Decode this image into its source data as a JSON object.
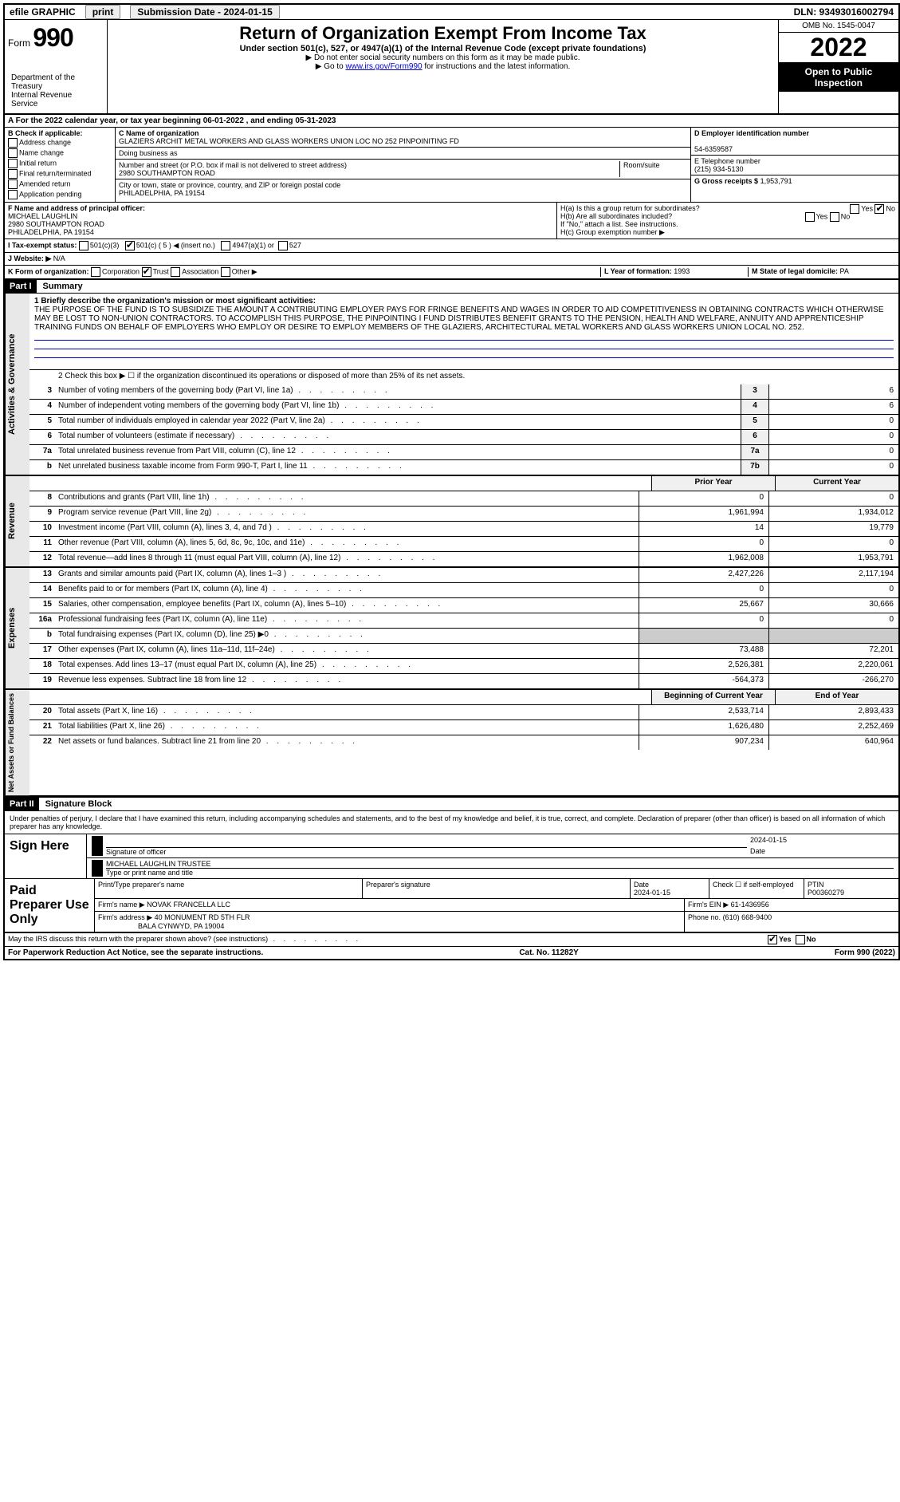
{
  "topbar": {
    "efile": "efile GRAPHIC",
    "print": "print",
    "submission_label": "Submission Date - 2024-01-15",
    "dln": "DLN: 93493016002794"
  },
  "header": {
    "form_prefix": "Form",
    "form_number": "990",
    "title": "Return of Organization Exempt From Income Tax",
    "subtitle": "Under section 501(c), 527, or 4947(a)(1) of the Internal Revenue Code (except private foundations)",
    "line_ssn": "▶ Do not enter social security numbers on this form as it may be made public.",
    "line_goto_pre": "▶ Go to ",
    "line_goto_link": "www.irs.gov/Form990",
    "line_goto_post": " for instructions and the latest information.",
    "dept": "Department of the Treasury\nInternal Revenue Service",
    "omb": "OMB No. 1545-0047",
    "year": "2022",
    "open": "Open to Public Inspection"
  },
  "row_a": "A For the 2022 calendar year, or tax year beginning 06-01-2022   , and ending 05-31-2023",
  "col_b": {
    "label": "B Check if applicable:",
    "items": [
      "Address change",
      "Name change",
      "Initial return",
      "Final return/terminated",
      "Amended return",
      "Application pending"
    ]
  },
  "col_c": {
    "name_label": "C Name of organization",
    "name": "GLAZIERS ARCHIT METAL WORKERS AND GLASS WORKERS UNION LOC NO 252 PINPOINITING FD",
    "dba_label": "Doing business as",
    "addr_label": "Number and street (or P.O. box if mail is not delivered to street address)",
    "addr": "2980 SOUTHAMPTON ROAD",
    "room_label": "Room/suite",
    "city_label": "City or town, state or province, country, and ZIP or foreign postal code",
    "city": "PHILADELPHIA, PA  19154"
  },
  "col_d": {
    "ein_label": "D Employer identification number",
    "ein": "54-6359587",
    "phone_label": "E Telephone number",
    "phone": "(215) 934-5130",
    "gross_label": "G Gross receipts $",
    "gross": "1,953,791"
  },
  "officer": {
    "label": "F  Name and address of principal officer:",
    "name": "MICHAEL LAUGHLIN",
    "addr1": "2980 SOUTHAMPTON ROAD",
    "addr2": "PHILADELPHIA, PA  19154"
  },
  "h": {
    "a": "H(a)  Is this a group return for subordinates?",
    "b": "H(b)  Are all subordinates included?",
    "note": "If \"No,\" attach a list. See instructions.",
    "c": "H(c)  Group exemption number ▶",
    "yes": "Yes",
    "no": "No"
  },
  "tax_status": {
    "label": "I  Tax-exempt status:",
    "c3": "501(c)(3)",
    "c5": "501(c) ( 5 ) ◀ (insert no.)",
    "a1": "4947(a)(1) or",
    "s527": "527"
  },
  "website": {
    "label": "J  Website: ▶",
    "value": "N/A"
  },
  "k": {
    "label": "K Form of organization:",
    "corp": "Corporation",
    "trust": "Trust",
    "assoc": "Association",
    "other": "Other ▶"
  },
  "l": {
    "label": "L Year of formation:",
    "value": "1993"
  },
  "m": {
    "label": "M State of legal domicile:",
    "value": "PA"
  },
  "part1": {
    "header": "Part I",
    "title": "Summary",
    "mission_label": "1  Briefly describe the organization's mission or most significant activities:",
    "mission": "THE PURPOSE OF THE FUND IS TO SUBSIDIZE THE AMOUNT A CONTRIBUTING EMPLOYER PAYS FOR FRINGE BENEFITS AND WAGES IN ORDER TO AID COMPETITIVENESS IN OBTAINING CONTRACTS WHICH OTHERWISE MAY BE LOST TO NON-UNION CONTRACTORS. TO ACCOMPLISH THIS PURPOSE, THE PINPOINTING I FUND DISTRIBUTES BENEFIT GRANTS TO THE PENSION, HEALTH AND WELFARE, ANNUITY AND APPRENTICESHIP TRAINING FUNDS ON BEHALF OF EMPLOYERS WHO EMPLOY OR DESIRE TO EMPLOY MEMBERS OF THE GLAZIERS, ARCHITECTURAL METAL WORKERS AND GLASS WORKERS UNION LOCAL NO. 252.",
    "line2": "2  Check this box ▶ ☐ if the organization discontinued its operations or disposed of more than 25% of its net assets.",
    "side_gov": "Activities & Governance",
    "side_rev": "Revenue",
    "side_exp": "Expenses",
    "side_net": "Net Assets or Fund Balances",
    "rows_gov": [
      {
        "n": "3",
        "d": "Number of voting members of the governing body (Part VI, line 1a)",
        "box": "3",
        "v": "6"
      },
      {
        "n": "4",
        "d": "Number of independent voting members of the governing body (Part VI, line 1b)",
        "box": "4",
        "v": "6"
      },
      {
        "n": "5",
        "d": "Total number of individuals employed in calendar year 2022 (Part V, line 2a)",
        "box": "5",
        "v": "0"
      },
      {
        "n": "6",
        "d": "Total number of volunteers (estimate if necessary)",
        "box": "6",
        "v": "0"
      },
      {
        "n": "7a",
        "d": "Total unrelated business revenue from Part VIII, column (C), line 12",
        "box": "7a",
        "v": "0"
      },
      {
        "n": "b",
        "d": "Net unrelated business taxable income from Form 990-T, Part I, line 11",
        "box": "7b",
        "v": "0"
      }
    ],
    "col_headers": {
      "prior": "Prior Year",
      "current": "Current Year"
    },
    "rows_rev": [
      {
        "n": "8",
        "d": "Contributions and grants (Part VIII, line 1h)",
        "p": "0",
        "c": "0"
      },
      {
        "n": "9",
        "d": "Program service revenue (Part VIII, line 2g)",
        "p": "1,961,994",
        "c": "1,934,012"
      },
      {
        "n": "10",
        "d": "Investment income (Part VIII, column (A), lines 3, 4, and 7d )",
        "p": "14",
        "c": "19,779"
      },
      {
        "n": "11",
        "d": "Other revenue (Part VIII, column (A), lines 5, 6d, 8c, 9c, 10c, and 11e)",
        "p": "0",
        "c": "0"
      },
      {
        "n": "12",
        "d": "Total revenue—add lines 8 through 11 (must equal Part VIII, column (A), line 12)",
        "p": "1,962,008",
        "c": "1,953,791"
      }
    ],
    "rows_exp": [
      {
        "n": "13",
        "d": "Grants and similar amounts paid (Part IX, column (A), lines 1–3 )",
        "p": "2,427,226",
        "c": "2,117,194"
      },
      {
        "n": "14",
        "d": "Benefits paid to or for members (Part IX, column (A), line 4)",
        "p": "0",
        "c": "0"
      },
      {
        "n": "15",
        "d": "Salaries, other compensation, employee benefits (Part IX, column (A), lines 5–10)",
        "p": "25,667",
        "c": "30,666"
      },
      {
        "n": "16a",
        "d": "Professional fundraising fees (Part IX, column (A), line 11e)",
        "p": "0",
        "c": "0"
      },
      {
        "n": "b",
        "d": "Total fundraising expenses (Part IX, column (D), line 25) ▶0",
        "p": "",
        "c": "",
        "shaded": true
      },
      {
        "n": "17",
        "d": "Other expenses (Part IX, column (A), lines 11a–11d, 11f–24e)",
        "p": "73,488",
        "c": "72,201"
      },
      {
        "n": "18",
        "d": "Total expenses. Add lines 13–17 (must equal Part IX, column (A), line 25)",
        "p": "2,526,381",
        "c": "2,220,061"
      },
      {
        "n": "19",
        "d": "Revenue less expenses. Subtract line 18 from line 12",
        "p": "-564,373",
        "c": "-266,270"
      }
    ],
    "net_headers": {
      "begin": "Beginning of Current Year",
      "end": "End of Year"
    },
    "rows_net": [
      {
        "n": "20",
        "d": "Total assets (Part X, line 16)",
        "p": "2,533,714",
        "c": "2,893,433"
      },
      {
        "n": "21",
        "d": "Total liabilities (Part X, line 26)",
        "p": "1,626,480",
        "c": "2,252,469"
      },
      {
        "n": "22",
        "d": "Net assets or fund balances. Subtract line 21 from line 20",
        "p": "907,234",
        "c": "640,964"
      }
    ]
  },
  "part2": {
    "header": "Part II",
    "title": "Signature Block",
    "intro": "Under penalties of perjury, I declare that I have examined this return, including accompanying schedules and statements, and to the best of my knowledge and belief, it is true, correct, and complete. Declaration of preparer (other than officer) is based on all information of which preparer has any knowledge.",
    "sign_here": "Sign Here",
    "sig_officer": "Signature of officer",
    "date": "2024-01-15",
    "date_label": "Date",
    "officer_name": "MICHAEL LAUGHLIN  TRUSTEE",
    "type_name": "Type or print name and title",
    "paid": "Paid Preparer Use Only",
    "print_name_label": "Print/Type preparer's name",
    "prep_sig_label": "Preparer's signature",
    "prep_date": "2024-01-15",
    "check_label": "Check ☐ if self-employed",
    "ptin_label": "PTIN",
    "ptin": "P00360279",
    "firm_name_label": "Firm's name    ▶",
    "firm_name": "NOVAK FRANCELLA LLC",
    "firm_ein_label": "Firm's EIN ▶",
    "firm_ein": "61-1436956",
    "firm_addr_label": "Firm's address ▶",
    "firm_addr1": "40 MONUMENT RD 5TH FLR",
    "firm_addr2": "BALA CYNWYD, PA  19004",
    "phone_label": "Phone no.",
    "phone": "(610) 668-9400",
    "discuss": "May the IRS discuss this return with the preparer shown above? (see instructions)",
    "yes": "Yes",
    "no": "No"
  },
  "footer": {
    "left": "For Paperwork Reduction Act Notice, see the separate instructions.",
    "center": "Cat. No. 11282Y",
    "right": "Form 990 (2022)"
  }
}
